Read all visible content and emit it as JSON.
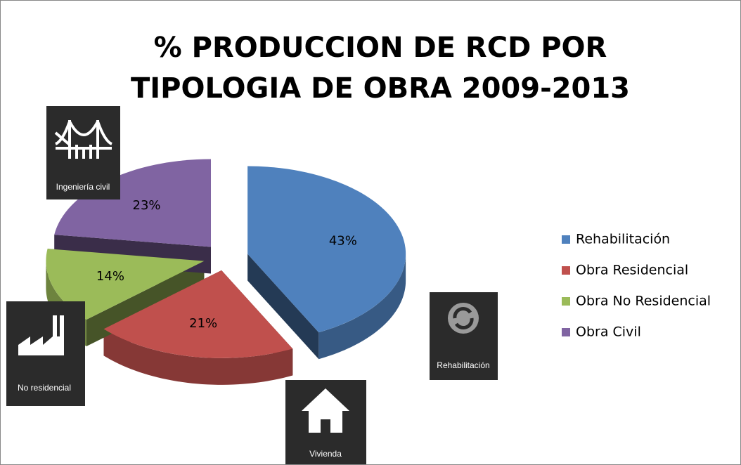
{
  "chart_data": {
    "type": "pie",
    "title": "% PRODUCCION DE RCD POR TIPOLOGIA DE OBRA 2009-2013",
    "categories": [
      "Rehabilitación",
      "Obra Residencial",
      "Obra No Residencial",
      "Obra Civil"
    ],
    "values": [
      43,
      21,
      14,
      23
    ],
    "value_labels": [
      "43%",
      "21%",
      "14%",
      "23%"
    ],
    "colors": [
      "#4f81bd",
      "#c0504d",
      "#9bbb59",
      "#8064a2"
    ],
    "legend": "right",
    "annotations": [
      "Ingeniería civil",
      "Rehabilitación",
      "Vivienda",
      "No residencial"
    ]
  }
}
